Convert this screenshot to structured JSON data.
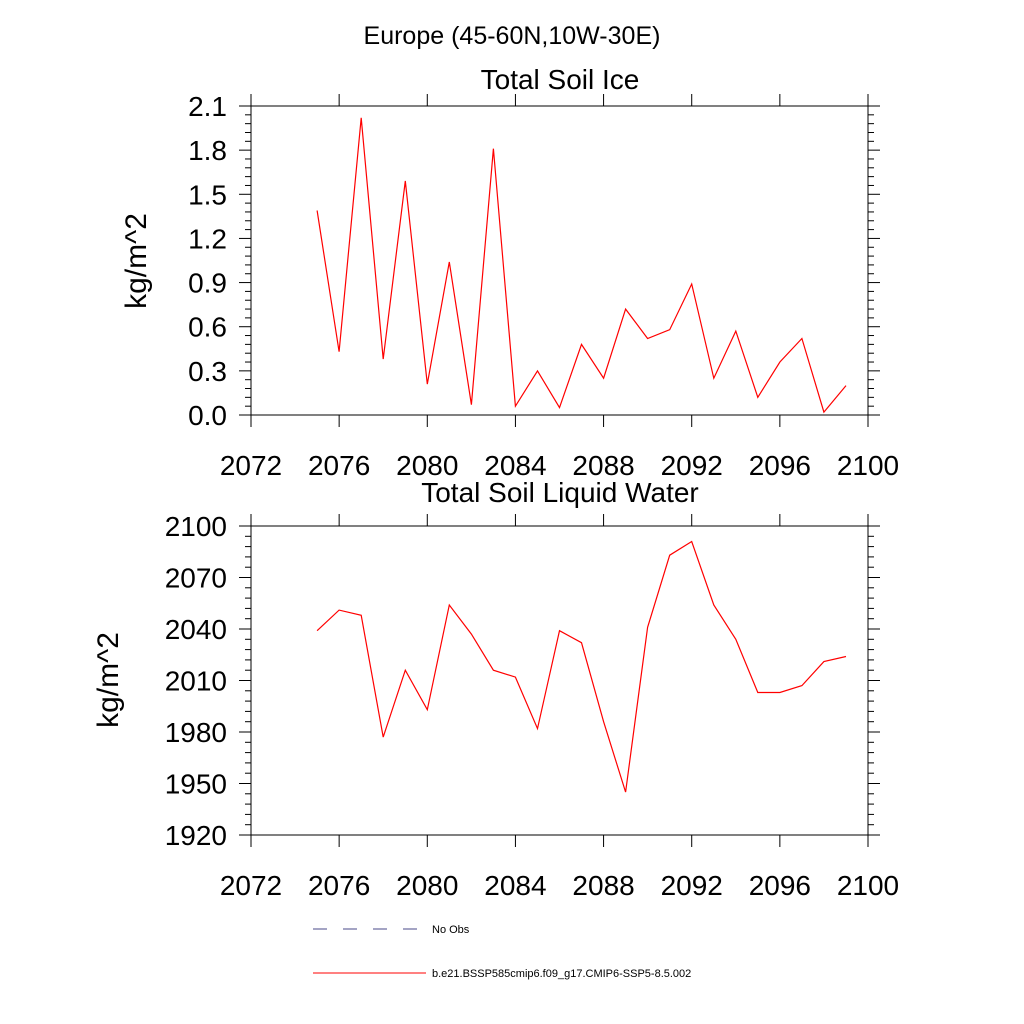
{
  "title": "Europe (45-60N,10W-30E)",
  "chart_data": [
    {
      "type": "line",
      "title": "Total Soil Ice",
      "ylabel": "kg/m^2",
      "xlabel": "",
      "xlim": [
        2072,
        2100
      ],
      "ylim": [
        0,
        2.1
      ],
      "x_ticks": [
        "2072",
        "2076",
        "2080",
        "2084",
        "2088",
        "2092",
        "2096",
        "2100"
      ],
      "y_ticks": [
        "0.0",
        "0.3",
        "0.6",
        "0.9",
        "1.2",
        "1.5",
        "1.8",
        "2.1"
      ],
      "x": [
        2075,
        2076,
        2077,
        2078,
        2079,
        2080,
        2081,
        2082,
        2083,
        2084,
        2085,
        2086,
        2087,
        2088,
        2089,
        2090,
        2091,
        2092,
        2093,
        2094,
        2095,
        2096,
        2097,
        2098,
        2099
      ],
      "series": [
        {
          "name": "b.e21.BSSP585cmip6.f09_g17.CMIP6-SSP5-8.5.002",
          "color": "#ff0000",
          "values": [
            1.39,
            0.43,
            2.02,
            0.38,
            1.59,
            0.21,
            1.04,
            0.07,
            1.81,
            0.06,
            0.3,
            0.05,
            0.48,
            0.25,
            0.72,
            0.52,
            0.58,
            0.89,
            0.25,
            0.57,
            0.12,
            0.36,
            0.52,
            0.02,
            0.2
          ]
        }
      ],
      "grid": false
    },
    {
      "type": "line",
      "title": "Total Soil Liquid Water",
      "ylabel": "kg/m^2",
      "xlabel": "",
      "xlim": [
        2072,
        2100
      ],
      "ylim": [
        1920,
        2100
      ],
      "x_ticks": [
        "2072",
        "2076",
        "2080",
        "2084",
        "2088",
        "2092",
        "2096",
        "2100"
      ],
      "y_ticks": [
        "1920",
        "1950",
        "1980",
        "2010",
        "2040",
        "2070",
        "2100"
      ],
      "x": [
        2075,
        2076,
        2077,
        2078,
        2079,
        2080,
        2081,
        2082,
        2083,
        2084,
        2085,
        2086,
        2087,
        2088,
        2089,
        2090,
        2091,
        2092,
        2093,
        2094,
        2095,
        2096,
        2097,
        2098,
        2099
      ],
      "series": [
        {
          "name": "b.e21.BSSP585cmip6.f09_g17.CMIP6-SSP5-8.5.002",
          "color": "#ff0000",
          "values": [
            2039,
            2051,
            2048,
            1977,
            2016,
            1993,
            2054,
            2037,
            2016,
            2012,
            1982,
            2039,
            2032,
            1986,
            1945,
            2041,
            2083,
            2091,
            2054,
            2034,
            2003,
            2003,
            2007,
            2021,
            2024
          ]
        }
      ],
      "grid": false
    }
  ],
  "legend": {
    "placement": "bottom",
    "items": [
      {
        "label": "No Obs",
        "color": "#4a4a8a",
        "dash": true
      },
      {
        "label": "b.e21.BSSP585cmip6.f09_g17.CMIP6-SSP5-8.5.002",
        "color": "#ff0000",
        "dash": false
      }
    ]
  }
}
